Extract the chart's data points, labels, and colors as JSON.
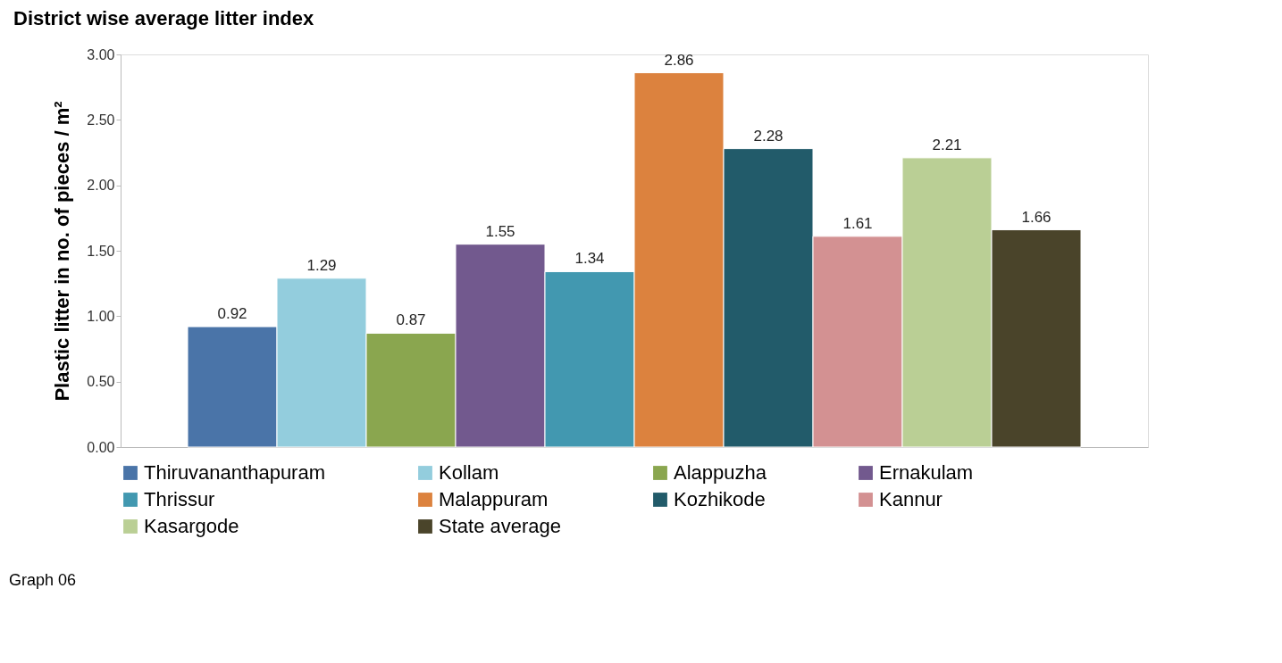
{
  "chart_data": {
    "type": "bar",
    "title": "District wise average litter index",
    "ylabel": "Plastic litter in no. of pieces / m²",
    "categories": [
      null
    ],
    "series": [
      {
        "name": "Thiruvananthapuram",
        "color": "#4a74a8",
        "values": [
          0.92
        ]
      },
      {
        "name": "Kollam",
        "color": "#93cddd",
        "values": [
          1.29
        ]
      },
      {
        "name": "Alappuzha",
        "color": "#8aa64f",
        "values": [
          0.87
        ]
      },
      {
        "name": "Ernakulam",
        "color": "#72598e",
        "values": [
          1.55
        ]
      },
      {
        "name": "Thrissur",
        "color": "#4298b0",
        "values": [
          1.34
        ]
      },
      {
        "name": "Malappuram",
        "color": "#dc823e",
        "values": [
          2.86
        ]
      },
      {
        "name": "Kozhikode",
        "color": "#225b6a",
        "values": [
          2.28
        ]
      },
      {
        "name": "Kannur",
        "color": "#d39192",
        "values": [
          1.61
        ]
      },
      {
        "name": "Kasargode",
        "color": "#bacf95",
        "values": [
          2.21
        ]
      },
      {
        "name": "State average",
        "color": "#4a442a",
        "values": [
          1.66
        ]
      }
    ],
    "ylim": [
      0,
      3
    ],
    "yticks": [
      {
        "value": 0,
        "label": "0.00"
      },
      {
        "value": 0.5,
        "label": "0.50"
      },
      {
        "value": 1,
        "label": "1.00"
      },
      {
        "value": 1.5,
        "label": "1.50"
      },
      {
        "value": 2,
        "label": "2.00"
      },
      {
        "value": 2.5,
        "label": "2.50"
      },
      {
        "value": 3,
        "label": "3.00"
      }
    ],
    "data_labels": true,
    "grid": false,
    "legend": "bottom",
    "annotations": [
      "Graph 06"
    ]
  }
}
